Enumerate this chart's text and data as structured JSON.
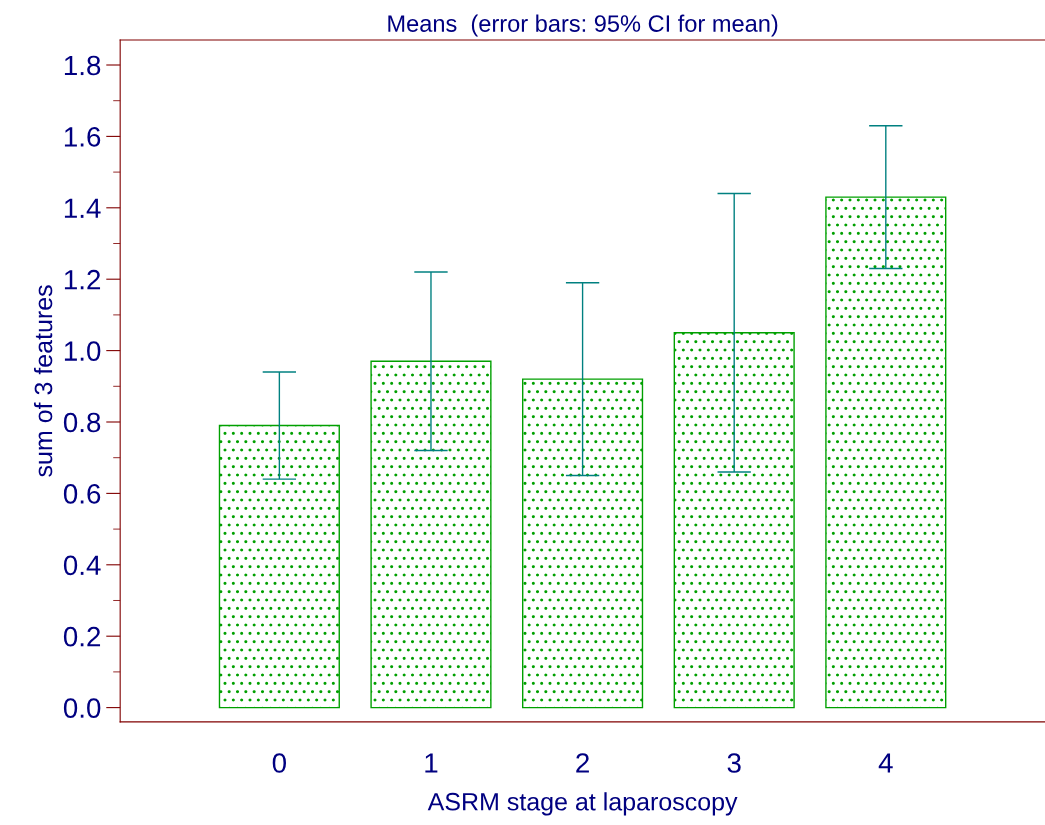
{
  "chart_data": {
    "type": "bar",
    "title": "Means  (error bars: 95% CI for mean)",
    "xlabel": "ASRM stage at laparoscopy",
    "ylabel": "sum of 3 features",
    "categories": [
      "0",
      "1",
      "2",
      "3",
      "4"
    ],
    "values": [
      0.79,
      0.97,
      0.92,
      1.05,
      1.43
    ],
    "errors": [
      0.15,
      0.25,
      0.27,
      0.39,
      0.2
    ],
    "color": "#00a000",
    "ylim": [
      -0.04,
      1.87
    ],
    "yticks": [
      {
        "value": 0,
        "label": "0.0"
      },
      0.2,
      0.4,
      0.6,
      0.8,
      {
        "value": 1,
        "label": "1.0"
      },
      1.2,
      1.4,
      1.6,
      1.8
    ],
    "grid": false
  }
}
